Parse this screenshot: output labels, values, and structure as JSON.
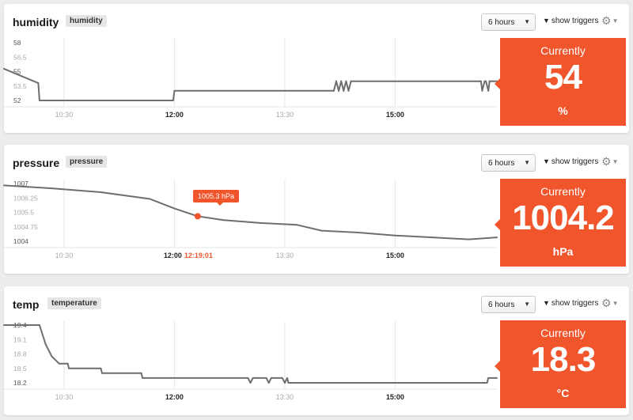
{
  "panels": [
    {
      "id": "humidity",
      "title": "humidity",
      "tag": "humidity",
      "range": "6 hours",
      "triggers": "show triggers",
      "current_label": "Currently",
      "current_value": "54",
      "current_unit": "%",
      "chart_data": {
        "type": "line",
        "x_labels": [
          "10:30",
          "12:00",
          "13:30",
          "15:00"
        ],
        "y_ticks": [
          "58",
          "56.5",
          "55",
          "53.5",
          "52"
        ],
        "ylim": [
          52,
          58
        ],
        "x": [
          "09:41",
          "10:09",
          "10:10",
          "11:59",
          "12:00",
          "14:10",
          "14:12",
          "14:14",
          "14:16",
          "14:18",
          "14:20",
          "14:22",
          "14:24",
          "16:10",
          "16:11",
          "16:13",
          "16:14",
          "16:16",
          "16:17",
          "16:19",
          "16:23"
        ],
        "values": [
          55.3,
          53.8,
          52,
          52,
          53,
          53,
          54,
          53,
          54,
          53,
          54,
          53,
          54,
          54,
          53,
          54,
          54,
          53,
          54,
          54,
          54
        ],
        "grid": true
      }
    },
    {
      "id": "pressure",
      "title": "pressure",
      "tag": "pressure",
      "range": "6 hours",
      "triggers": "show triggers",
      "current_label": "Currently",
      "current_value": "1004.2",
      "current_unit": "hPa",
      "tooltip": "1005.3 hPa",
      "hover_time": "12:19:01",
      "chart_data": {
        "type": "line",
        "x_labels": [
          "10:30",
          "12:00",
          "13:30",
          "15:00"
        ],
        "y_ticks": [
          "1007",
          "1006.25",
          "1005.5",
          "1004.75",
          "1004"
        ],
        "ylim": [
          1004,
          1007
        ],
        "x": [
          "09:41",
          "10:20",
          "11:00",
          "11:40",
          "12:00",
          "12:19",
          "12:40",
          "13:10",
          "13:40",
          "14:00",
          "14:30",
          "15:00",
          "15:30",
          "16:00",
          "16:23"
        ],
        "values": [
          1006.9,
          1006.75,
          1006.55,
          1006.2,
          1005.7,
          1005.3,
          1005.1,
          1004.95,
          1004.85,
          1004.55,
          1004.45,
          1004.3,
          1004.2,
          1004.1,
          1004.2
        ],
        "hover_point": {
          "x": "12:19",
          "y": 1005.3
        },
        "grid": true
      }
    },
    {
      "id": "temp",
      "title": "temp",
      "tag": "temperature",
      "range": "6 hours",
      "triggers": "show triggers",
      "current_label": "Currently",
      "current_value": "18.3",
      "current_unit": "°C",
      "chart_data": {
        "type": "line",
        "x_labels": [
          "10:30",
          "12:00",
          "13:30",
          "15:00"
        ],
        "y_ticks": [
          "19.4",
          "19.1",
          "18.8",
          "18.5",
          "18.2"
        ],
        "ylim": [
          18.2,
          19.4
        ],
        "x": [
          "09:41",
          "10:10",
          "10:15",
          "10:20",
          "10:22",
          "10:26",
          "10:33",
          "10:34",
          "11:00",
          "11:01",
          "11:33",
          "11:34",
          "13:00",
          "13:02",
          "13:04",
          "13:05",
          "13:15",
          "13:17",
          "13:19",
          "13:21",
          "13:28",
          "13:30",
          "13:32",
          "13:33",
          "14:00",
          "15:00",
          "16:15",
          "16:16",
          "16:23"
        ],
        "values": [
          19.4,
          19.4,
          19.0,
          18.75,
          18.7,
          18.6,
          18.6,
          18.5,
          18.5,
          18.4,
          18.4,
          18.3,
          18.3,
          18.2,
          18.3,
          18.3,
          18.3,
          18.2,
          18.3,
          18.3,
          18.3,
          18.2,
          18.3,
          18.2,
          18.2,
          18.2,
          18.2,
          18.3,
          18.3
        ],
        "grid": true
      }
    }
  ],
  "colors": {
    "accent": "#f0552c",
    "line": "#6e6e6e",
    "grid": "#e6e6e6",
    "tick": "#aaaaaa"
  },
  "icons": {
    "triggers": "triangle-down-icon",
    "settings": "gear-icon"
  }
}
